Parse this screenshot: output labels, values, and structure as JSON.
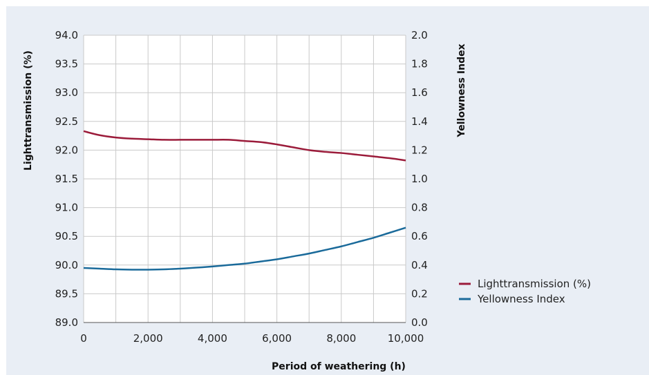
{
  "chart_data": {
    "type": "line",
    "x": [
      0,
      500,
      1000,
      1500,
      2000,
      2500,
      3000,
      3500,
      4000,
      4500,
      5000,
      5500,
      6000,
      6500,
      7000,
      7500,
      8000,
      8500,
      9000,
      9500,
      10000
    ],
    "xlabel": "Period of weathering (h)",
    "xlim": [
      0,
      10000
    ],
    "xticks": [
      0,
      2000,
      4000,
      6000,
      8000,
      10000
    ],
    "xtick_labels": [
      "0",
      "2,000",
      "4,000",
      "6,000",
      "8,000",
      "10,000"
    ],
    "ylabel_left": "Lighttransmission (%)",
    "ylim_left": [
      89.0,
      94.0
    ],
    "yticks_left": [
      89.0,
      89.5,
      90.0,
      90.5,
      91.0,
      91.5,
      92.0,
      92.5,
      93.0,
      93.5,
      94.0
    ],
    "ytick_labels_left": [
      "89.0",
      "89.5",
      "90.0",
      "90.5",
      "91.0",
      "91.5",
      "92.0",
      "92.5",
      "93.0",
      "93.5",
      "94.0"
    ],
    "ylabel_right": "Yellowness Index",
    "ylim_right": [
      0.0,
      2.0
    ],
    "yticks_right": [
      0.0,
      0.2,
      0.4,
      0.6,
      0.8,
      1.0,
      1.2,
      1.4,
      1.6,
      1.8,
      2.0
    ],
    "ytick_labels_right": [
      "0.0",
      "0.2",
      "0.4",
      "0.6",
      "0.8",
      "1.0",
      "1.2",
      "1.4",
      "1.6",
      "1.8",
      "2.0"
    ],
    "grid": true,
    "legend_position": "right",
    "series": [
      {
        "name": "Lighttransmission (%)",
        "axis": "left",
        "color": "#9b1b3a",
        "values": [
          92.33,
          92.26,
          92.22,
          92.2,
          92.19,
          92.18,
          92.18,
          92.18,
          92.18,
          92.18,
          92.16,
          92.14,
          92.1,
          92.05,
          92.0,
          91.97,
          91.95,
          91.92,
          91.89,
          91.86,
          91.82
        ]
      },
      {
        "name": "Yellowness Index",
        "axis": "right",
        "color": "#1a6a9a",
        "values": [
          0.38,
          0.375,
          0.37,
          0.368,
          0.368,
          0.37,
          0.375,
          0.382,
          0.39,
          0.4,
          0.41,
          0.425,
          0.44,
          0.46,
          0.48,
          0.505,
          0.53,
          0.56,
          0.59,
          0.625,
          0.66
        ]
      }
    ]
  }
}
